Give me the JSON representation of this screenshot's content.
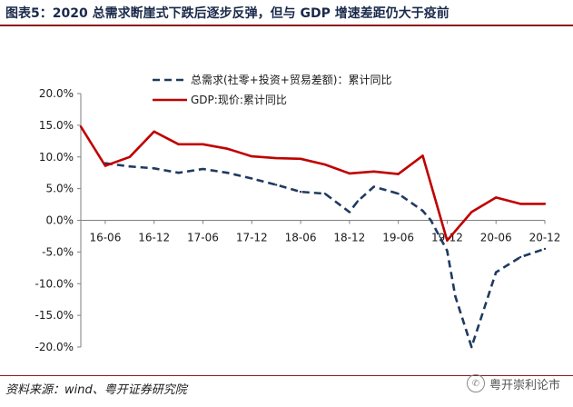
{
  "header": {
    "title": "图表5：2020 总需求断崖式下跌后逐步反弹，但与 GDP 增速差距仍大于疫前"
  },
  "footer": {
    "source": "资料来源：wind、粤开证券研究院",
    "watermark": "粤开崇利论市"
  },
  "colors": {
    "demand": "#1f3a5f",
    "gdp": "#c00000",
    "accent_rule": "#8b1a1a"
  },
  "icons": {
    "watermark": "wechat-icon"
  },
  "chart_data": {
    "type": "line",
    "title": "",
    "xlabel": "",
    "ylabel": "",
    "ylim": [
      -20,
      20
    ],
    "yticks": [
      "20.0%",
      "15.0%",
      "10.0%",
      "5.0%",
      "0.0%",
      "-5.0%",
      "-10.0%",
      "-15.0%",
      "-20.0%"
    ],
    "ytick_values": [
      20,
      15,
      10,
      5,
      0,
      -5,
      -10,
      -15,
      -20
    ],
    "xticks": [
      "16-06",
      "16-12",
      "17-06",
      "17-12",
      "18-06",
      "18-12",
      "19-06",
      "19-12",
      "20-06",
      "20-12"
    ],
    "x": [
      "16-06",
      "16-09",
      "16-12",
      "17-03",
      "17-06",
      "17-09",
      "17-12",
      "18-03",
      "18-06",
      "18-09",
      "18-12",
      "19-03",
      "19-06",
      "19-09",
      "19-12",
      "20-03",
      "20-06",
      "20-09",
      "20-12"
    ],
    "legend": "top",
    "grid": false,
    "series": [
      {
        "name": "总需求(社零+投资+贸易差额)：累计同比",
        "style": "dashed",
        "x": [
          "16-06",
          "16-09",
          "16-12",
          "17-03",
          "17-06",
          "17-09",
          "17-12",
          "18-03",
          "18-06",
          "18-09",
          "18-12",
          "19-01",
          "19-03",
          "19-06",
          "19-09",
          "19-10",
          "19-12",
          "20-01",
          "20-03",
          "20-06",
          "20-09",
          "20-12"
        ],
        "values": [
          9.0,
          8.5,
          8.2,
          7.5,
          8.1,
          7.5,
          6.6,
          5.6,
          4.5,
          4.2,
          1.3,
          3.0,
          5.3,
          4.2,
          1.5,
          0.0,
          -4.8,
          -12.0,
          -20.0,
          -8.2,
          -5.8,
          -4.5
        ]
      },
      {
        "name": "GDP:现价:累计同比",
        "style": "solid",
        "x": [
          "16-03",
          "16-06",
          "16-09",
          "16-12",
          "17-03",
          "17-06",
          "17-09",
          "17-12",
          "18-03",
          "18-06",
          "18-09",
          "18-12",
          "19-03",
          "19-06",
          "19-09",
          "19-12",
          "20-03",
          "20-06",
          "20-09",
          "20-12"
        ],
        "values": [
          14.8,
          8.6,
          10.0,
          14.0,
          12.0,
          12.0,
          11.3,
          10.1,
          9.8,
          9.7,
          8.8,
          7.4,
          7.7,
          7.3,
          10.2,
          -3.2,
          1.3,
          3.6,
          2.6,
          2.6
        ]
      }
    ]
  }
}
